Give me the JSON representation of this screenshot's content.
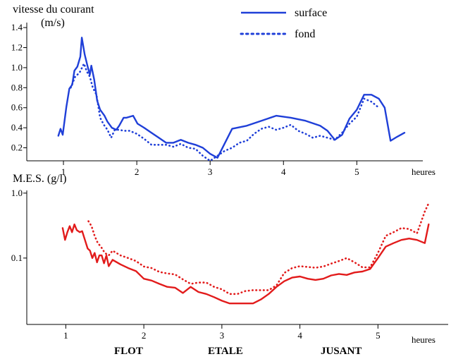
{
  "chart_data": [
    {
      "type": "line",
      "ylabel": "vitesse du courant",
      "yunit": "(m/s)",
      "xlabel": "heures",
      "xlim": [
        0.5,
        5.9
      ],
      "ylim": [
        0.07,
        1.45
      ],
      "x_ticks": [
        1,
        2,
        3,
        4,
        5
      ],
      "y_ticks": [
        0.2,
        0.4,
        0.6,
        0.8,
        1.0,
        1.2,
        1.4
      ],
      "y_tick_labels": [
        "0.2",
        "0.4",
        "0.6",
        "0.8",
        "1.0",
        "1.2",
        "1.4"
      ],
      "grid": false,
      "legend": "top-center",
      "series": [
        {
          "name": "surface",
          "style": "solid",
          "color": "#1f3fd8",
          "x": [
            0.93,
            0.96,
            0.99,
            1.04,
            1.08,
            1.12,
            1.15,
            1.19,
            1.23,
            1.25,
            1.29,
            1.33,
            1.36,
            1.38,
            1.42,
            1.46,
            1.5,
            1.56,
            1.6,
            1.66,
            1.72,
            1.76,
            1.82,
            1.86,
            1.95,
            2.01,
            2.1,
            2.2,
            2.3,
            2.4,
            2.5,
            2.6,
            2.7,
            2.8,
            2.9,
            3.0,
            3.1,
            3.3,
            3.5,
            3.7,
            3.9,
            4.1,
            4.3,
            4.5,
            4.6,
            4.7,
            4.8,
            4.9,
            5.0,
            5.1,
            5.2,
            5.3,
            5.38,
            5.46,
            5.55,
            5.65
          ],
          "y": [
            0.32,
            0.39,
            0.33,
            0.61,
            0.79,
            0.83,
            0.97,
            1.01,
            1.11,
            1.3,
            1.13,
            1.01,
            0.93,
            1.02,
            0.88,
            0.67,
            0.58,
            0.52,
            0.46,
            0.4,
            0.38,
            0.42,
            0.5,
            0.5,
            0.52,
            0.44,
            0.4,
            0.35,
            0.3,
            0.25,
            0.25,
            0.28,
            0.25,
            0.23,
            0.2,
            0.14,
            0.1,
            0.39,
            0.42,
            0.47,
            0.52,
            0.5,
            0.47,
            0.42,
            0.37,
            0.28,
            0.33,
            0.49,
            0.58,
            0.73,
            0.73,
            0.69,
            0.6,
            0.27,
            0.31,
            0.35
          ]
        },
        {
          "name": "fond",
          "style": "dotted",
          "color": "#1f3fd8",
          "x": [
            1.1,
            1.16,
            1.22,
            1.28,
            1.32,
            1.36,
            1.4,
            1.45,
            1.5,
            1.55,
            1.6,
            1.65,
            1.7,
            1.76,
            1.82,
            1.9,
            2.0,
            2.1,
            2.2,
            2.3,
            2.4,
            2.5,
            2.6,
            2.7,
            2.8,
            2.9,
            3.0,
            3.1,
            3.2,
            3.3,
            3.4,
            3.5,
            3.6,
            3.7,
            3.8,
            3.9,
            4.0,
            4.1,
            4.2,
            4.3,
            4.4,
            4.5,
            4.6,
            4.7,
            4.8,
            4.9,
            5.0,
            5.1,
            5.2,
            5.3
          ],
          "y": [
            0.8,
            0.91,
            0.95,
            1.04,
            0.96,
            0.91,
            0.8,
            0.73,
            0.5,
            0.43,
            0.38,
            0.3,
            0.38,
            0.38,
            0.37,
            0.37,
            0.34,
            0.29,
            0.23,
            0.23,
            0.23,
            0.21,
            0.24,
            0.2,
            0.19,
            0.12,
            0.07,
            0.12,
            0.17,
            0.2,
            0.25,
            0.27,
            0.34,
            0.39,
            0.41,
            0.38,
            0.4,
            0.43,
            0.37,
            0.34,
            0.3,
            0.32,
            0.3,
            0.28,
            0.35,
            0.44,
            0.51,
            0.69,
            0.66,
            0.6
          ]
        }
      ]
    },
    {
      "type": "line",
      "ylabel": "M.E.S. (g/l)",
      "xlabel": "heures",
      "yscale": "log",
      "xlim": [
        0.5,
        5.9
      ],
      "ylim": [
        0.0095,
        1.1
      ],
      "x_ticks": [
        1,
        2,
        3,
        4,
        5
      ],
      "y_ticks": [
        0.1,
        1.0
      ],
      "y_tick_labels": [
        "0.1",
        "1.0"
      ],
      "grid": false,
      "series": [
        {
          "style": "solid",
          "color": "#e21b1b",
          "x": [
            0.96,
            0.99,
            1.02,
            1.05,
            1.08,
            1.11,
            1.14,
            1.18,
            1.21,
            1.24,
            1.28,
            1.31,
            1.34,
            1.37,
            1.4,
            1.43,
            1.46,
            1.49,
            1.52,
            1.55,
            1.6,
            1.7,
            1.8,
            1.9,
            2.0,
            2.1,
            2.2,
            2.3,
            2.4,
            2.5,
            2.6,
            2.7,
            2.8,
            2.9,
            3.0,
            3.1,
            3.2,
            3.3,
            3.4,
            3.5,
            3.6,
            3.7,
            3.8,
            3.9,
            4.0,
            4.1,
            4.2,
            4.3,
            4.4,
            4.5,
            4.6,
            4.7,
            4.8,
            4.9,
            5.0,
            5.1,
            5.2,
            5.3,
            5.4,
            5.5,
            5.6,
            5.65
          ],
          "y": [
            0.29,
            0.19,
            0.25,
            0.31,
            0.25,
            0.33,
            0.27,
            0.25,
            0.26,
            0.2,
            0.14,
            0.13,
            0.1,
            0.12,
            0.086,
            0.11,
            0.11,
            0.083,
            0.11,
            0.075,
            0.094,
            0.08,
            0.07,
            0.063,
            0.048,
            0.045,
            0.04,
            0.036,
            0.035,
            0.029,
            0.036,
            0.03,
            0.028,
            0.025,
            0.022,
            0.02,
            0.02,
            0.02,
            0.02,
            0.023,
            0.028,
            0.036,
            0.044,
            0.05,
            0.052,
            0.048,
            0.046,
            0.048,
            0.054,
            0.057,
            0.055,
            0.06,
            0.062,
            0.068,
            0.1,
            0.15,
            0.17,
            0.19,
            0.2,
            0.19,
            0.17,
            0.33
          ]
        },
        {
          "style": "dotted",
          "color": "#e21b1b",
          "x": [
            1.29,
            1.33,
            1.37,
            1.41,
            1.45,
            1.5,
            1.55,
            1.6,
            1.7,
            1.8,
            1.9,
            2.0,
            2.1,
            2.2,
            2.3,
            2.4,
            2.5,
            2.6,
            2.7,
            2.8,
            2.9,
            3.0,
            3.1,
            3.2,
            3.3,
            3.4,
            3.5,
            3.6,
            3.7,
            3.8,
            3.9,
            4.0,
            4.1,
            4.2,
            4.3,
            4.4,
            4.5,
            4.6,
            4.7,
            4.8,
            4.9,
            5.0,
            5.1,
            5.2,
            5.3,
            5.4,
            5.5,
            5.6,
            5.65
          ],
          "y": [
            0.37,
            0.31,
            0.22,
            0.17,
            0.15,
            0.12,
            0.11,
            0.13,
            0.11,
            0.1,
            0.09,
            0.074,
            0.07,
            0.061,
            0.058,
            0.056,
            0.047,
            0.04,
            0.042,
            0.042,
            0.036,
            0.033,
            0.028,
            0.028,
            0.031,
            0.032,
            0.032,
            0.032,
            0.038,
            0.059,
            0.07,
            0.075,
            0.073,
            0.071,
            0.074,
            0.082,
            0.09,
            0.1,
            0.086,
            0.072,
            0.072,
            0.12,
            0.22,
            0.25,
            0.29,
            0.28,
            0.24,
            0.52,
            0.7
          ]
        }
      ]
    }
  ],
  "phases": [
    "FLOT",
    "ETALE",
    "JUSANT"
  ]
}
